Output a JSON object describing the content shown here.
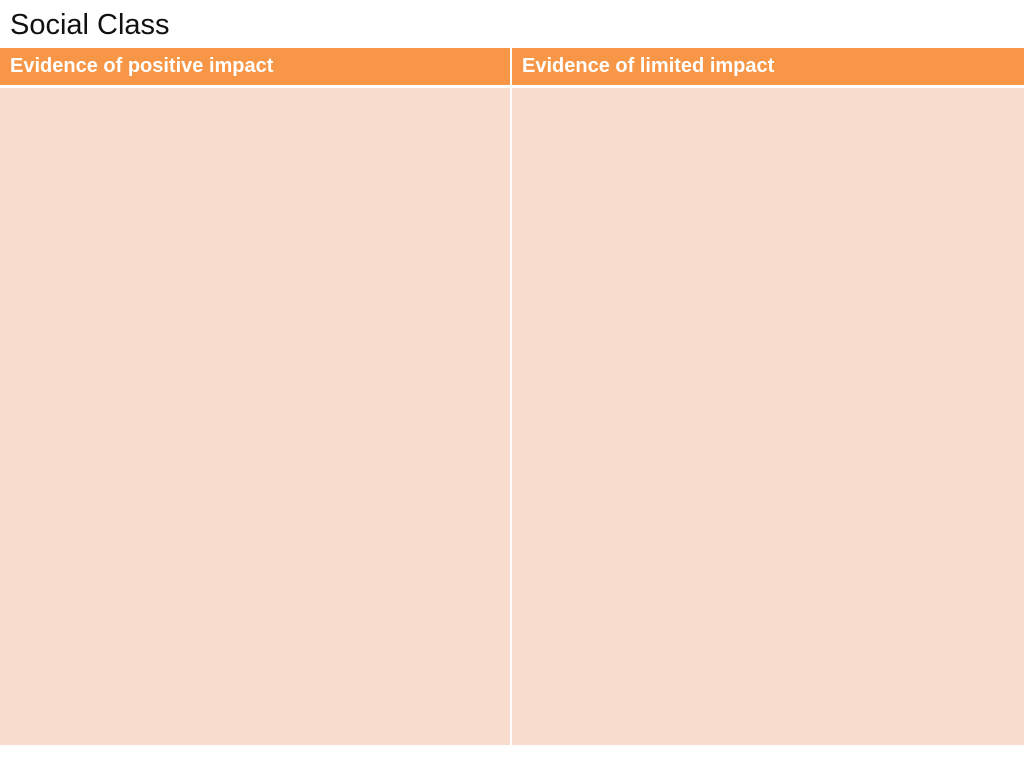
{
  "slide": {
    "title": "Social Class"
  },
  "table": {
    "columns": [
      {
        "header": "Evidence of positive impact",
        "body": ""
      },
      {
        "header": "Evidence of limited impact",
        "body": ""
      }
    ]
  },
  "colors": {
    "header_bg": "#f79646",
    "body_bg": "#f8ddce",
    "header_text": "#ffffff",
    "title_text": "#111111"
  }
}
